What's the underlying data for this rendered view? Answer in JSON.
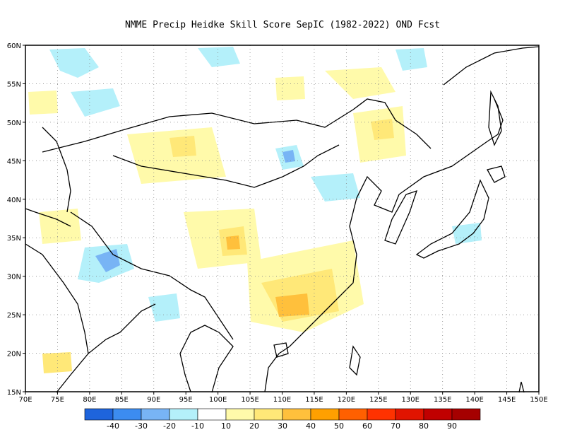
{
  "title": "NMME Precip Heidke Skill Score SepIC (1982-2022) OND Fcst",
  "map": {
    "lon_range": [
      70,
      150
    ],
    "lat_range": [
      15,
      60
    ],
    "lon_ticks": [
      "70E",
      "75E",
      "80E",
      "85E",
      "90E",
      "95E",
      "100E",
      "105E",
      "110E",
      "115E",
      "120E",
      "125E",
      "130E",
      "135E",
      "140E",
      "145E",
      "150E"
    ],
    "lat_ticks": [
      "60N",
      "55N",
      "50N",
      "45N",
      "40N",
      "35N",
      "30N",
      "25N",
      "20N",
      "15N"
    ]
  },
  "colorbar": {
    "colors": [
      "#1e64dc",
      "#3c8cf0",
      "#78b4f5",
      "#b4f0fa",
      "#ffffff",
      "#fffaaa",
      "#ffe878",
      "#ffc03c",
      "#ffa000",
      "#ff6000",
      "#ff3200",
      "#e11400",
      "#c00000",
      "#a50000"
    ],
    "labels": [
      "-40",
      "-30",
      "-20",
      "-10",
      "10",
      "20",
      "30",
      "40",
      "50",
      "60",
      "70",
      "80",
      "90"
    ]
  }
}
